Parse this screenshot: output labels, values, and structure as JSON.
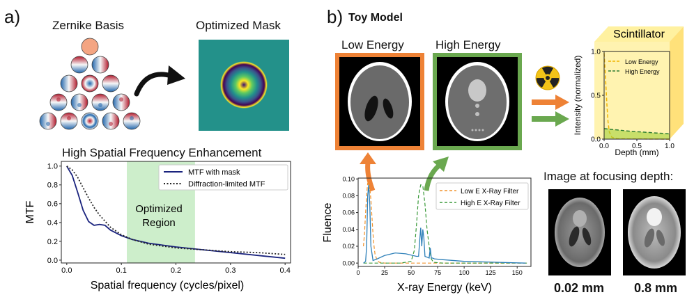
{
  "panel_a": {
    "letter": "a)",
    "zernike_title": "Zernike Basis",
    "mask_title": "Optimized Mask",
    "chart_title": "High Spatial Frequency Enhancement",
    "region_label_1": "Optimized",
    "region_label_2": "Region"
  },
  "panel_b": {
    "letter": "b)",
    "title": "Toy Model",
    "low_energy_label": "Low Energy",
    "high_energy_label": "High Energy",
    "scintillator_label": "Scintillator",
    "focus_title": "Image at focusing depth:",
    "focus_depth_1": "0.02 mm",
    "focus_depth_2": "0.8 mm"
  },
  "colors": {
    "mtf_mask": "#1a237e",
    "orange": "#ee8236",
    "green": "#6aa84f",
    "filter_low": "#f0922b",
    "filter_high": "#3a9a3a",
    "fluence": "#2c7fb8",
    "region": "#cdeecb"
  },
  "chart_data": [
    {
      "type": "line",
      "title": "High Spatial Frequency Enhancement",
      "xlabel": "Spatial frequency (cycles/pixel)",
      "ylabel": "MTF",
      "xlim": [
        -0.01,
        0.41
      ],
      "ylim": [
        -0.03,
        1.05
      ],
      "xticks": [
        "0.0",
        "0.1",
        "0.2",
        "0.3",
        "0.4"
      ],
      "yticks": [
        "0.0",
        "0.2",
        "0.4",
        "0.6",
        "0.8",
        "1.0"
      ],
      "shaded_region": [
        0.11,
        0.235
      ],
      "series": [
        {
          "name": "MTF with mask",
          "style": "solid",
          "x": [
            0.0,
            0.01,
            0.02,
            0.03,
            0.04,
            0.05,
            0.06,
            0.07,
            0.08,
            0.1,
            0.12,
            0.15,
            0.2,
            0.25,
            0.3,
            0.35,
            0.4
          ],
          "y": [
            1.0,
            0.9,
            0.72,
            0.53,
            0.41,
            0.37,
            0.38,
            0.37,
            0.32,
            0.26,
            0.22,
            0.18,
            0.14,
            0.11,
            0.08,
            0.05,
            0.02
          ]
        },
        {
          "name": "Diffraction-limited MTF",
          "style": "dotted",
          "x": [
            0.0,
            0.01,
            0.02,
            0.03,
            0.04,
            0.05,
            0.06,
            0.08,
            0.1,
            0.12,
            0.15,
            0.2,
            0.25,
            0.3,
            0.35,
            0.4
          ],
          "y": [
            1.0,
            0.96,
            0.88,
            0.77,
            0.66,
            0.56,
            0.48,
            0.35,
            0.27,
            0.22,
            0.17,
            0.13,
            0.11,
            0.09,
            0.08,
            0.06
          ]
        }
      ]
    },
    {
      "type": "line",
      "xlabel": "X-ray Energy (keV)",
      "ylabel": "Fluence",
      "xlim": [
        0,
        163
      ],
      "ylim": [
        -0.004,
        0.101
      ],
      "xticks": [
        "0",
        "25",
        "50",
        "75",
        "100",
        "125",
        "150"
      ],
      "yticks": [
        "0.00",
        "0.02",
        "0.04",
        "0.06",
        "0.08",
        "0.10"
      ],
      "series": [
        {
          "name": "Low E X-Ray Filter",
          "style": "dashed",
          "x": [
            5,
            6,
            7,
            8,
            9,
            10,
            11,
            12,
            13,
            14,
            15,
            16,
            18,
            20,
            25,
            40,
            60,
            160
          ],
          "y": [
            0.02,
            0.035,
            0.06,
            0.082,
            0.095,
            0.096,
            0.09,
            0.075,
            0.055,
            0.035,
            0.02,
            0.01,
            0.003,
            0.001,
            0.0,
            0.0,
            0.0,
            0.0
          ]
        },
        {
          "name": "High E X-Ray Filter",
          "style": "dashed",
          "x": [
            5,
            40,
            50,
            53,
            55,
            57,
            59,
            61,
            63,
            65,
            67,
            69,
            71,
            80,
            160
          ],
          "y": [
            0.0,
            0.0,
            0.002,
            0.015,
            0.045,
            0.08,
            0.093,
            0.092,
            0.07,
            0.04,
            0.02,
            0.005,
            0.001,
            0.0,
            0.0
          ]
        },
        {
          "name": "Fluence",
          "style": "solid",
          "x": [
            5,
            7,
            8,
            9,
            10,
            11,
            12,
            14,
            18,
            25,
            35,
            45,
            55,
            57,
            58,
            59,
            60,
            61,
            62,
            63,
            65,
            67,
            68,
            69,
            70,
            72,
            80,
            100,
            130,
            158
          ],
          "y": [
            0.0,
            0.002,
            0.02,
            0.08,
            0.093,
            0.07,
            0.02,
            0.003,
            0.005,
            0.009,
            0.012,
            0.011,
            0.008,
            0.008,
            0.025,
            0.042,
            0.02,
            0.04,
            0.03,
            0.008,
            0.007,
            0.006,
            0.018,
            0.006,
            0.006,
            0.005,
            0.004,
            0.002,
            0.001,
            0.0
          ]
        }
      ]
    },
    {
      "type": "line",
      "xlabel": "Depth (mm)",
      "ylabel": "Intensity (normalized)",
      "xlim": [
        0,
        1.0
      ],
      "ylim": [
        0,
        1.0
      ],
      "xticks": [
        "0.0",
        "0.5",
        "1.0"
      ],
      "yticks": [
        "0.0",
        "0.5",
        "1.0"
      ],
      "series": [
        {
          "name": "Low Energy",
          "style": "dashed",
          "x": [
            0.0,
            0.02,
            0.04,
            0.06,
            0.08,
            0.12,
            0.2,
            0.4,
            1.0
          ],
          "y": [
            0.98,
            0.72,
            0.42,
            0.2,
            0.08,
            0.02,
            0.005,
            0.002,
            0.0
          ]
        },
        {
          "name": "High Energy",
          "style": "dashed",
          "x": [
            0.0,
            0.2,
            0.4,
            0.6,
            0.8,
            1.0
          ],
          "y": [
            0.12,
            0.105,
            0.09,
            0.08,
            0.07,
            0.06
          ]
        }
      ]
    }
  ]
}
